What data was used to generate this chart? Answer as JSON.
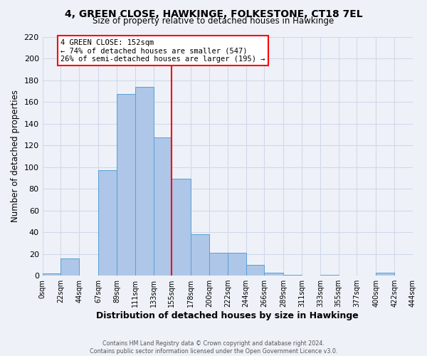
{
  "title": "4, GREEN CLOSE, HAWKINGE, FOLKESTONE, CT18 7EL",
  "subtitle": "Size of property relative to detached houses in Hawkinge",
  "xlabel": "Distribution of detached houses by size in Hawkinge",
  "ylabel": "Number of detached properties",
  "footnote1": "Contains HM Land Registry data © Crown copyright and database right 2024.",
  "footnote2": "Contains public sector information licensed under the Open Government Licence v3.0.",
  "bar_edges": [
    0,
    22,
    44,
    67,
    89,
    111,
    133,
    155,
    178,
    200,
    222,
    244,
    266,
    289,
    311,
    333,
    355,
    377,
    400,
    422,
    444
  ],
  "bar_heights": [
    2,
    16,
    0,
    97,
    167,
    174,
    127,
    89,
    38,
    21,
    21,
    10,
    3,
    1,
    0,
    1,
    0,
    0,
    3,
    0
  ],
  "bar_color": "#aec6e8",
  "bar_edge_color": "#5a9fd4",
  "grid_color": "#d0d8e8",
  "bg_color": "#eef2f8",
  "red_line_x": 155,
  "annotation_title": "4 GREEN CLOSE: 152sqm",
  "annotation_line1": "← 74% of detached houses are smaller (547)",
  "annotation_line2": "26% of semi-detached houses are larger (195) →",
  "ylim": [
    0,
    220
  ],
  "yticks": [
    0,
    20,
    40,
    60,
    80,
    100,
    120,
    140,
    160,
    180,
    200,
    220
  ],
  "xtick_labels": [
    "0sqm",
    "22sqm",
    "44sqm",
    "67sqm",
    "89sqm",
    "111sqm",
    "133sqm",
    "155sqm",
    "178sqm",
    "200sqm",
    "222sqm",
    "244sqm",
    "266sqm",
    "289sqm",
    "311sqm",
    "333sqm",
    "355sqm",
    "377sqm",
    "400sqm",
    "422sqm",
    "444sqm"
  ]
}
